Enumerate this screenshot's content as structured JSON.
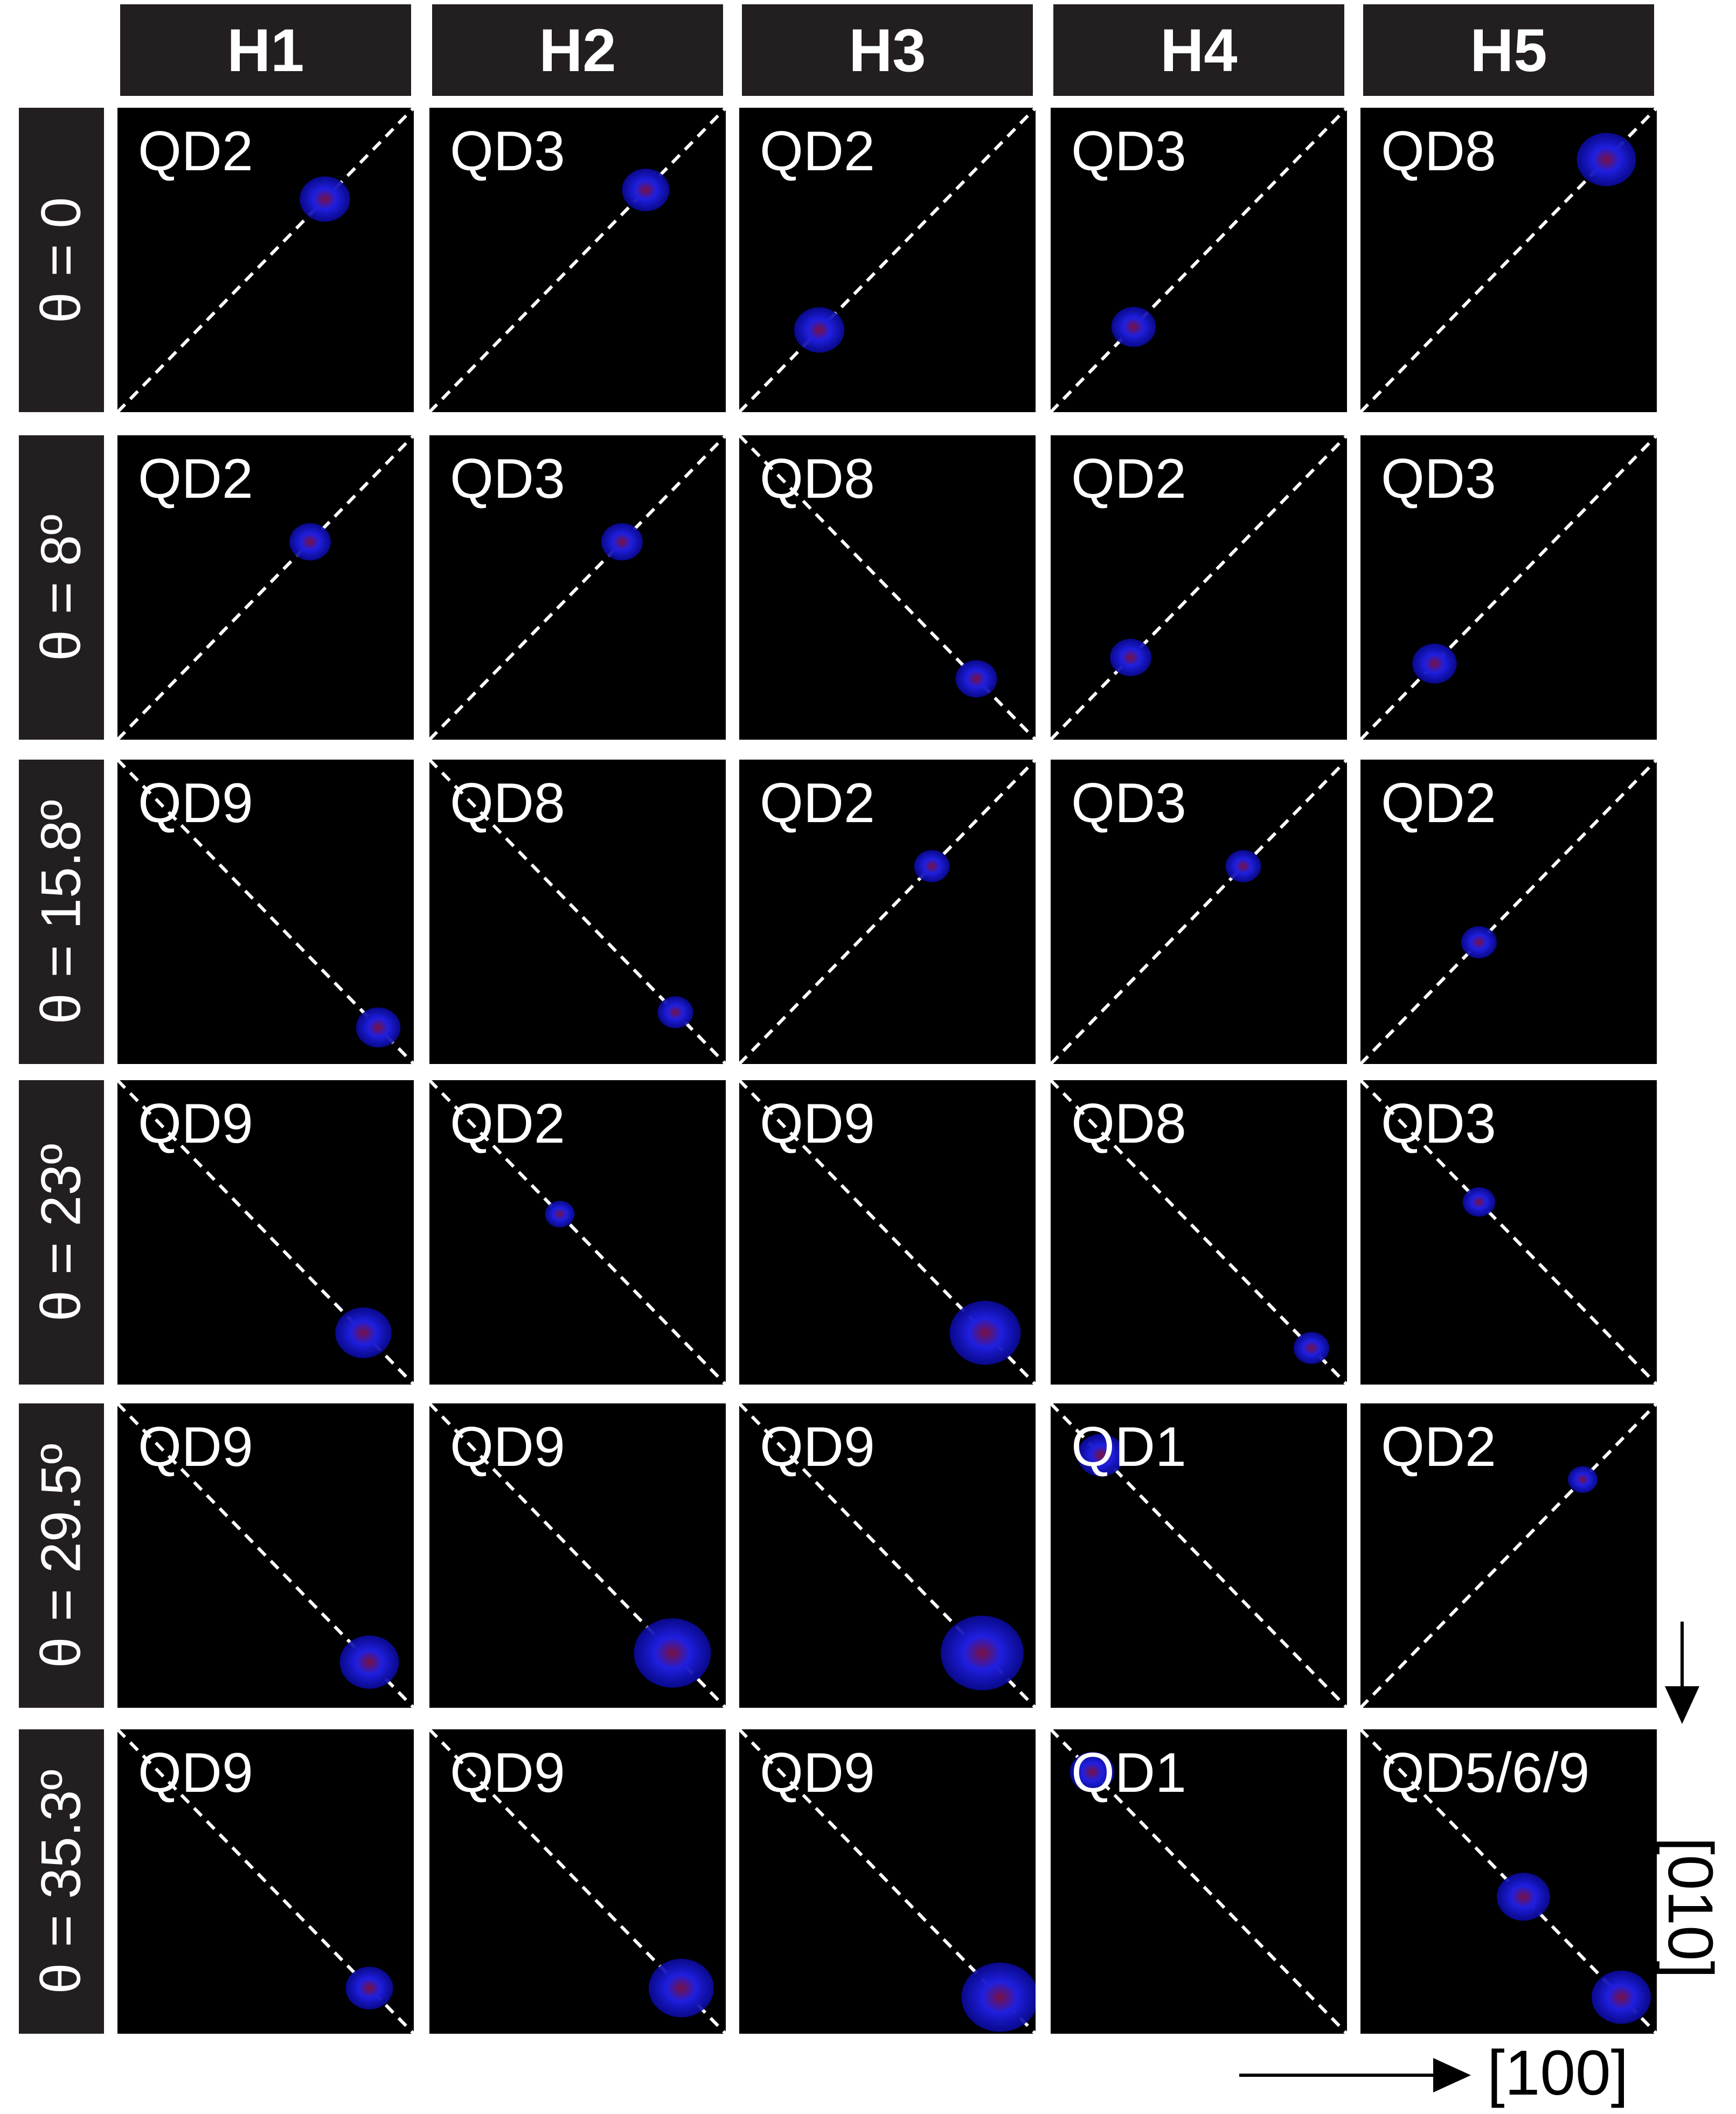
{
  "columns": [
    "H1",
    "H2",
    "H3",
    "H4",
    "H5"
  ],
  "rows": [
    {
      "label": "θ = 0",
      "cells": [
        {
          "name": "QD2",
          "dir": "up",
          "blobs": [
            {
              "p": 0.7,
              "r": 0.085
            }
          ]
        },
        {
          "name": "QD3",
          "dir": "up",
          "blobs": [
            {
              "p": 0.73,
              "r": 0.08
            }
          ]
        },
        {
          "name": "QD2",
          "dir": "up",
          "blobs": [
            {
              "p": 0.27,
              "r": 0.085
            }
          ]
        },
        {
          "name": "QD3",
          "dir": "up",
          "blobs": [
            {
              "p": 0.28,
              "r": 0.075
            }
          ]
        },
        {
          "name": "QD8",
          "dir": "up",
          "blobs": [
            {
              "p": 0.83,
              "r": 0.1
            }
          ]
        }
      ]
    },
    {
      "label": "θ = 8º",
      "cells": [
        {
          "name": "QD2",
          "dir": "up",
          "blobs": [
            {
              "p": 0.65,
              "r": 0.07
            }
          ]
        },
        {
          "name": "QD3",
          "dir": "up",
          "blobs": [
            {
              "p": 0.65,
              "r": 0.07
            }
          ]
        },
        {
          "name": "QD8",
          "dir": "down",
          "blobs": [
            {
              "p": 0.8,
              "r": 0.07
            }
          ]
        },
        {
          "name": "QD2",
          "dir": "up",
          "blobs": [
            {
              "p": 0.27,
              "r": 0.07
            }
          ]
        },
        {
          "name": "QD3",
          "dir": "up",
          "blobs": [
            {
              "p": 0.25,
              "r": 0.075
            }
          ]
        }
      ]
    },
    {
      "label": "θ = 15.8º",
      "cells": [
        {
          "name": "QD9",
          "dir": "down",
          "blobs": [
            {
              "p": 0.88,
              "r": 0.075
            }
          ]
        },
        {
          "name": "QD8",
          "dir": "down",
          "blobs": [
            {
              "p": 0.83,
              "r": 0.06
            }
          ]
        },
        {
          "name": "QD2",
          "dir": "up",
          "blobs": [
            {
              "p": 0.65,
              "r": 0.06
            }
          ]
        },
        {
          "name": "QD3",
          "dir": "up",
          "blobs": [
            {
              "p": 0.65,
              "r": 0.06
            }
          ]
        },
        {
          "name": "QD2",
          "dir": "up",
          "blobs": [
            {
              "p": 0.4,
              "r": 0.06
            }
          ]
        }
      ]
    },
    {
      "label": "θ = 23º",
      "cells": [
        {
          "name": "QD9",
          "dir": "down",
          "blobs": [
            {
              "p": 0.83,
              "r": 0.095
            }
          ]
        },
        {
          "name": "QD2",
          "dir": "down",
          "blobs": [
            {
              "p": 0.44,
              "r": 0.05
            }
          ]
        },
        {
          "name": "QD9",
          "dir": "down",
          "blobs": [
            {
              "p": 0.83,
              "r": 0.12
            }
          ]
        },
        {
          "name": "QD8",
          "dir": "down",
          "blobs": [
            {
              "p": 0.88,
              "r": 0.06
            }
          ]
        },
        {
          "name": "QD3",
          "dir": "down",
          "blobs": [
            {
              "p": 0.4,
              "r": 0.055
            }
          ]
        }
      ]
    },
    {
      "label": "θ = 29.5º",
      "cells": [
        {
          "name": "QD9",
          "dir": "down",
          "blobs": [
            {
              "p": 0.85,
              "r": 0.1
            }
          ]
        },
        {
          "name": "QD9",
          "dir": "down",
          "blobs": [
            {
              "p": 0.82,
              "r": 0.13
            }
          ]
        },
        {
          "name": "QD9",
          "dir": "down",
          "blobs": [
            {
              "p": 0.82,
              "r": 0.14
            }
          ]
        },
        {
          "name": "QD1",
          "dir": "down",
          "blobs": [
            {
              "p": 0.17,
              "r": 0.08
            }
          ]
        },
        {
          "name": "QD2",
          "dir": "up",
          "blobs": [
            {
              "p": 0.75,
              "r": 0.05
            }
          ]
        }
      ]
    },
    {
      "label": "θ = 35.3º",
      "cells": [
        {
          "name": "QD9",
          "dir": "down",
          "blobs": [
            {
              "p": 0.85,
              "r": 0.08
            }
          ]
        },
        {
          "name": "QD9",
          "dir": "down",
          "blobs": [
            {
              "p": 0.85,
              "r": 0.11
            }
          ]
        },
        {
          "name": "QD9",
          "dir": "down",
          "blobs": [
            {
              "p": 0.88,
              "r": 0.13
            }
          ]
        },
        {
          "name": "QD1",
          "dir": "down",
          "blobs": [
            {
              "p": 0.14,
              "r": 0.075
            }
          ]
        },
        {
          "name": "QD5/6/9",
          "dir": "down",
          "blobs": [
            {
              "p": 0.55,
              "r": 0.09
            },
            {
              "p": 0.88,
              "r": 0.1
            }
          ]
        }
      ]
    }
  ],
  "axes": {
    "horizontal": "[100]",
    "vertical": "[010]"
  },
  "colors": {
    "header_bg": "#231f20",
    "cell_bg": "#000000",
    "blob": "#1f1fe0",
    "blob_core": "#7a1040",
    "diagonal": "#ffffff"
  }
}
